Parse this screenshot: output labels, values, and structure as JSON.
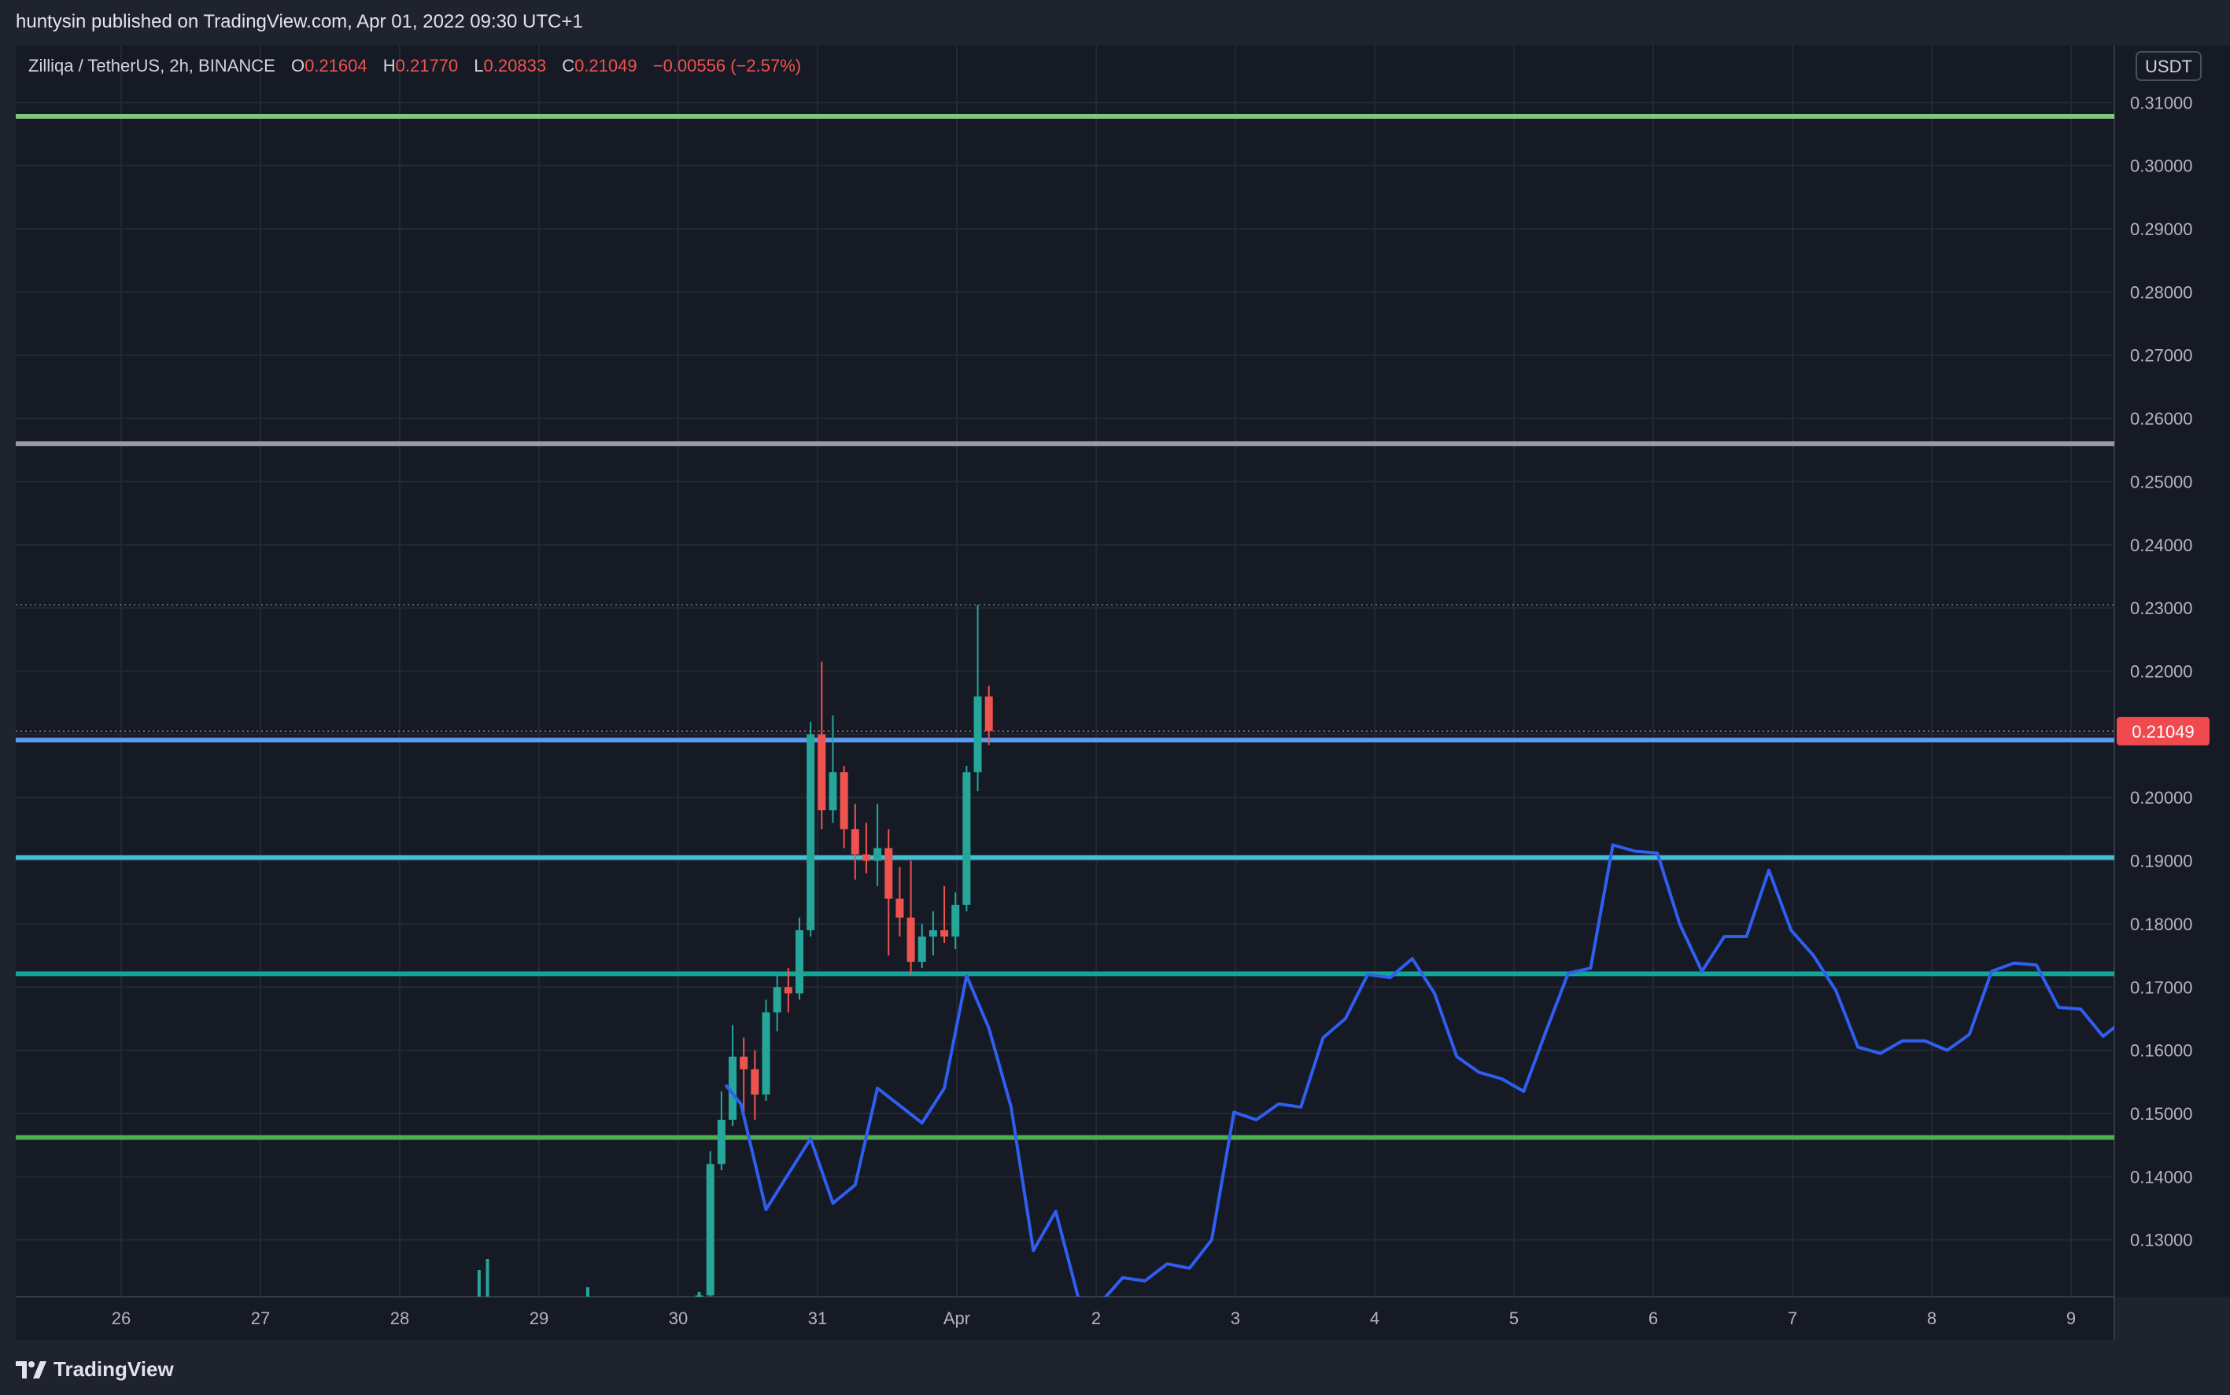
{
  "header": {
    "published_by": "huntysin published on TradingView.com, Apr 01, 2022 09:30 UTC+1"
  },
  "legend": {
    "symbol": "Zilliqa / TetherUS, 2h, BINANCE",
    "open_label": "O",
    "open_value": "0.21604",
    "high_label": "H",
    "high_value": "0.21770",
    "low_label": "L",
    "low_value": "0.20833",
    "close_label": "C",
    "close_value": "0.21049",
    "change": "−0.00556 (−2.57%)"
  },
  "price_axis": {
    "currency_badge": "USDT",
    "last_price_label": "0.21049",
    "colors": {
      "last_price_bg": "#f04a4f",
      "up": "#26a69a",
      "down": "#ef5350"
    }
  },
  "footer": {
    "brand": "TradingView"
  },
  "chart_data": {
    "type": "candlestick",
    "title": "Zilliqa / TetherUS, 2h, BINANCE",
    "xlabel": "",
    "ylabel": "USDT",
    "ylim": [
      0.121,
      0.319
    ],
    "x_ticks": [
      {
        "label": "26",
        "t": 0.0
      },
      {
        "label": "27",
        "t": 1.0
      },
      {
        "label": "28",
        "t": 2.0
      },
      {
        "label": "29",
        "t": 3.0
      },
      {
        "label": "30",
        "t": 4.0
      },
      {
        "label": "31",
        "t": 5.0
      },
      {
        "label": "Apr",
        "t": 6.0
      },
      {
        "label": "2",
        "t": 7.0
      },
      {
        "label": "3",
        "t": 8.0
      },
      {
        "label": "4",
        "t": 9.0
      },
      {
        "label": "5",
        "t": 10.0
      },
      {
        "label": "6",
        "t": 11.0
      },
      {
        "label": "7",
        "t": 12.0
      },
      {
        "label": "8",
        "t": 13.0
      },
      {
        "label": "9",
        "t": 14.0
      }
    ],
    "y_ticks": [
      "0.13000",
      "0.14000",
      "0.15000",
      "0.16000",
      "0.17000",
      "0.18000",
      "0.19000",
      "0.20000",
      "0.21000",
      "0.22000",
      "0.23000",
      "0.24000",
      "0.25000",
      "0.26000",
      "0.27000",
      "0.28000",
      "0.29000",
      "0.30000",
      "0.31000"
    ],
    "horizontal_levels": [
      {
        "value": 0.3078,
        "color": "#7ec77f"
      },
      {
        "value": 0.256,
        "color": "#9a9aa0"
      },
      {
        "value": 0.2091,
        "color": "#5b9cf0"
      },
      {
        "value": 0.1905,
        "color": "#3fc0d6"
      },
      {
        "value": 0.1721,
        "color": "#11a59a"
      },
      {
        "value": 0.1462,
        "color": "#4caf50"
      }
    ],
    "reference_lines": [
      {
        "value": 0.2305,
        "style": "dotted",
        "color": "#6f7380"
      },
      {
        "value": 0.2105,
        "style": "dotted",
        "color": "#d96a8a"
      }
    ],
    "candles": [
      {
        "t": 4.15,
        "o": 0.1208,
        "h": 0.1215,
        "l": 0.1205,
        "c": 0.1212
      },
      {
        "t": 4.23,
        "o": 0.1212,
        "h": 0.144,
        "l": 0.121,
        "c": 0.142
      },
      {
        "t": 4.31,
        "o": 0.142,
        "h": 0.1535,
        "l": 0.141,
        "c": 0.149
      },
      {
        "t": 4.39,
        "o": 0.149,
        "h": 0.164,
        "l": 0.148,
        "c": 0.159
      },
      {
        "t": 4.47,
        "o": 0.159,
        "h": 0.162,
        "l": 0.149,
        "c": 0.157
      },
      {
        "t": 4.55,
        "o": 0.157,
        "h": 0.16,
        "l": 0.149,
        "c": 0.153
      },
      {
        "t": 4.63,
        "o": 0.153,
        "h": 0.168,
        "l": 0.152,
        "c": 0.166
      },
      {
        "t": 4.71,
        "o": 0.166,
        "h": 0.172,
        "l": 0.163,
        "c": 0.17
      },
      {
        "t": 4.79,
        "o": 0.17,
        "h": 0.173,
        "l": 0.166,
        "c": 0.169
      },
      {
        "t": 4.87,
        "o": 0.169,
        "h": 0.181,
        "l": 0.168,
        "c": 0.179
      },
      {
        "t": 4.95,
        "o": 0.179,
        "h": 0.212,
        "l": 0.178,
        "c": 0.21
      },
      {
        "t": 5.03,
        "o": 0.21,
        "h": 0.2215,
        "l": 0.195,
        "c": 0.198
      },
      {
        "t": 5.11,
        "o": 0.198,
        "h": 0.213,
        "l": 0.196,
        "c": 0.204
      },
      {
        "t": 5.19,
        "o": 0.204,
        "h": 0.205,
        "l": 0.192,
        "c": 0.195
      },
      {
        "t": 5.27,
        "o": 0.195,
        "h": 0.199,
        "l": 0.187,
        "c": 0.191
      },
      {
        "t": 5.35,
        "o": 0.191,
        "h": 0.196,
        "l": 0.188,
        "c": 0.19
      },
      {
        "t": 5.43,
        "o": 0.19,
        "h": 0.199,
        "l": 0.186,
        "c": 0.192
      },
      {
        "t": 5.51,
        "o": 0.192,
        "h": 0.195,
        "l": 0.175,
        "c": 0.184
      },
      {
        "t": 5.59,
        "o": 0.184,
        "h": 0.189,
        "l": 0.178,
        "c": 0.181
      },
      {
        "t": 5.67,
        "o": 0.181,
        "h": 0.19,
        "l": 0.172,
        "c": 0.174
      },
      {
        "t": 5.75,
        "o": 0.174,
        "h": 0.18,
        "l": 0.173,
        "c": 0.178
      },
      {
        "t": 5.83,
        "o": 0.178,
        "h": 0.182,
        "l": 0.175,
        "c": 0.179
      },
      {
        "t": 5.91,
        "o": 0.179,
        "h": 0.186,
        "l": 0.177,
        "c": 0.178
      },
      {
        "t": 5.99,
        "o": 0.178,
        "h": 0.185,
        "l": 0.176,
        "c": 0.183
      },
      {
        "t": 6.07,
        "o": 0.183,
        "h": 0.205,
        "l": 0.182,
        "c": 0.204
      },
      {
        "t": 6.15,
        "o": 0.204,
        "h": 0.2305,
        "l": 0.201,
        "c": 0.216
      },
      {
        "t": 6.23,
        "o": 0.216,
        "h": 0.2177,
        "l": 0.2083,
        "c": 0.2105
      }
    ],
    "series": [
      {
        "style": "line",
        "color": "#2f5ef0",
        "points": [
          [
            4.34,
            0.1545
          ],
          [
            4.45,
            0.1515
          ],
          [
            4.63,
            0.1348
          ],
          [
            4.95,
            0.146
          ],
          [
            5.11,
            0.1358
          ],
          [
            5.27,
            0.1387
          ],
          [
            5.43,
            0.154
          ],
          [
            5.75,
            0.1485
          ],
          [
            5.91,
            0.154
          ],
          [
            6.07,
            0.1718
          ],
          [
            6.23,
            0.1635
          ],
          [
            6.39,
            0.151
          ],
          [
            6.55,
            0.1283
          ],
          [
            6.71,
            0.1345
          ],
          [
            6.87,
            0.121
          ],
          [
            6.95,
            0.1192
          ],
          [
            7.07,
            0.121
          ],
          [
            7.19,
            0.124
          ],
          [
            7.35,
            0.1235
          ],
          [
            7.51,
            0.1262
          ],
          [
            7.67,
            0.1255
          ],
          [
            7.83,
            0.13
          ],
          [
            7.99,
            0.1502
          ],
          [
            8.15,
            0.149
          ],
          [
            8.31,
            0.1515
          ],
          [
            8.47,
            0.151
          ],
          [
            8.63,
            0.162
          ],
          [
            8.79,
            0.165
          ],
          [
            8.95,
            0.172
          ],
          [
            9.11,
            0.1715
          ],
          [
            9.27,
            0.1745
          ],
          [
            9.43,
            0.169
          ],
          [
            9.59,
            0.159
          ],
          [
            9.75,
            0.1565
          ],
          [
            9.91,
            0.1555
          ],
          [
            10.07,
            0.1535
          ],
          [
            10.23,
            0.163
          ],
          [
            10.39,
            0.1722
          ],
          [
            10.55,
            0.173
          ],
          [
            10.71,
            0.1925
          ],
          [
            10.87,
            0.1915
          ],
          [
            11.03,
            0.1912
          ],
          [
            11.19,
            0.18
          ],
          [
            11.35,
            0.1725
          ],
          [
            11.51,
            0.178
          ],
          [
            11.67,
            0.178
          ],
          [
            11.83,
            0.1885
          ],
          [
            11.99,
            0.179
          ],
          [
            12.15,
            0.175
          ],
          [
            12.31,
            0.1695
          ],
          [
            12.47,
            0.1605
          ],
          [
            12.63,
            0.1595
          ],
          [
            12.79,
            0.1615
          ],
          [
            12.95,
            0.1615
          ],
          [
            13.11,
            0.16
          ],
          [
            13.27,
            0.1625
          ],
          [
            13.43,
            0.1725
          ],
          [
            13.59,
            0.1738
          ],
          [
            13.75,
            0.1735
          ],
          [
            13.91,
            0.1668
          ],
          [
            14.07,
            0.1665
          ],
          [
            14.23,
            0.1622
          ],
          [
            14.39,
            0.165
          ],
          [
            14.5,
            0.169
          ]
        ]
      }
    ],
    "volume_bars": [
      {
        "t": 2.57,
        "v": 0.34
      },
      {
        "t": 2.63,
        "v": 0.48
      },
      {
        "t": 3.35,
        "v": 0.12
      },
      {
        "t": 4.15,
        "v": 0.06
      }
    ],
    "grid": true
  }
}
